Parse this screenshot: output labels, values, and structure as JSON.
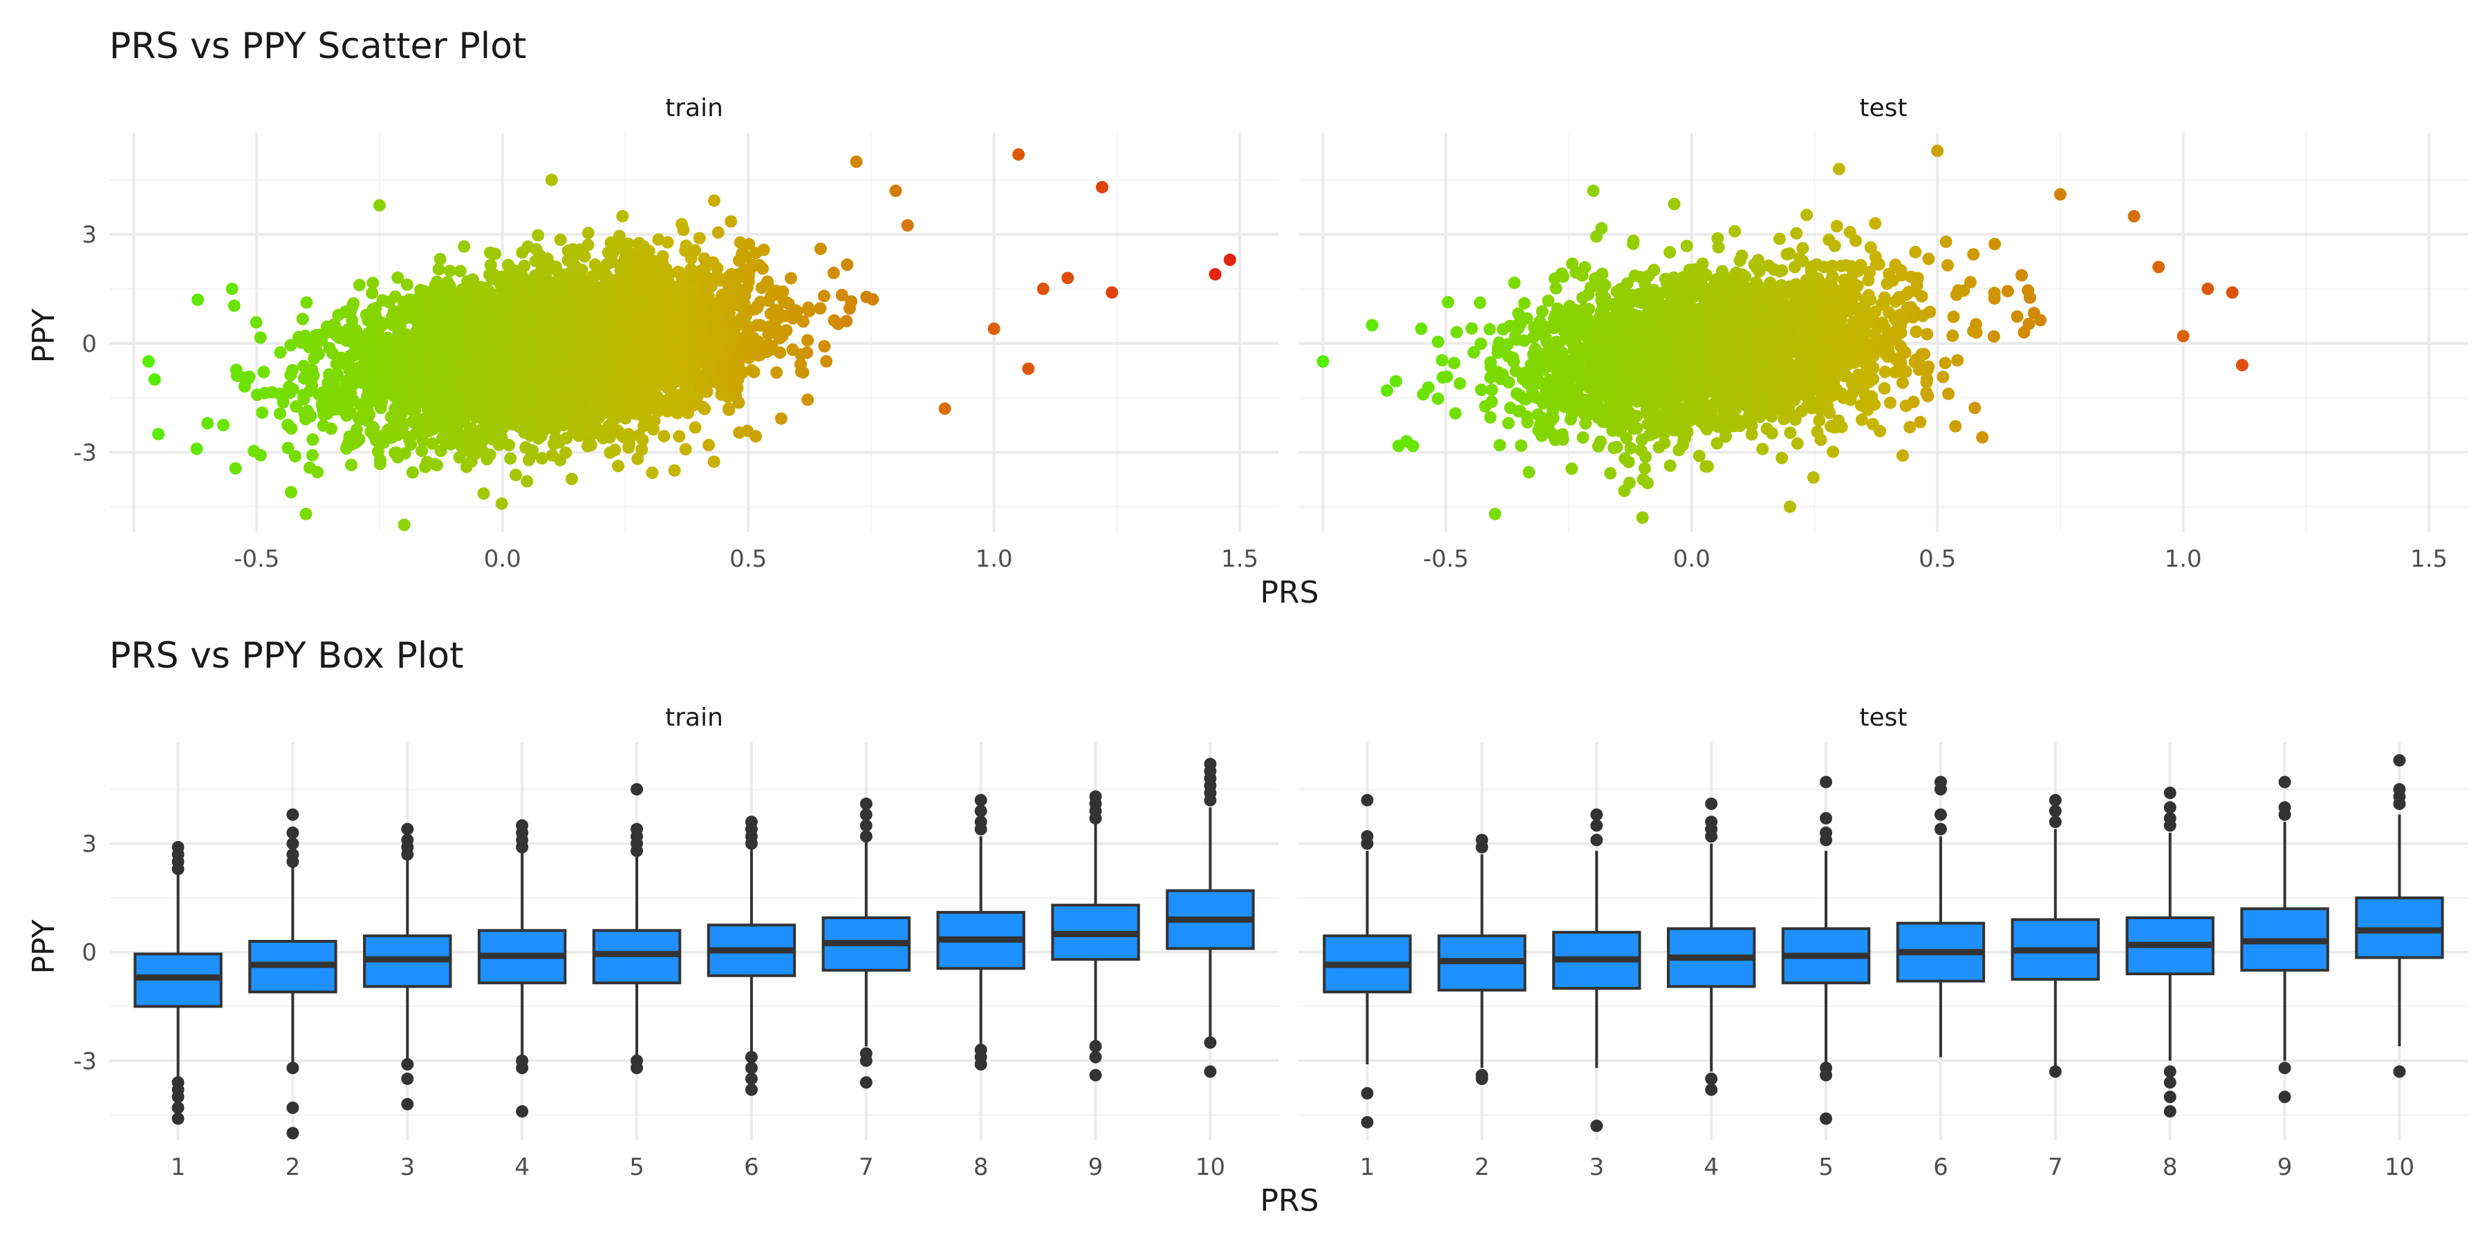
{
  "chart_data": [
    {
      "type": "scatter",
      "title": "PRS vs PPY Scatter Plot",
      "xlabel": "PRS",
      "ylabel": "PPY",
      "xlim": [
        -0.8,
        1.58
      ],
      "ylim": [
        -5.2,
        5.8
      ],
      "x_ticks": [
        "-0.5",
        "0.0",
        "0.5",
        "1.0",
        "1.5"
      ],
      "y_ticks": [
        "-3",
        "0",
        "3"
      ],
      "grid": true,
      "color_scale": {
        "low": "#55ee00",
        "mid": "#c8b400",
        "high": "#e81e10",
        "domain": [
          -0.75,
          1.5
        ]
      },
      "panels": [
        {
          "label": "train",
          "cloud": {
            "n": 5200,
            "x_mean": 0.1,
            "x_sd": 0.2,
            "y_intercept": -0.2,
            "y_slope": 1.6,
            "y_sd": 1.05
          },
          "outliers": [
            {
              "x": 1.05,
              "y": 5.2
            },
            {
              "x": 1.22,
              "y": 4.3
            },
            {
              "x": 1.48,
              "y": 2.3
            },
            {
              "x": 1.45,
              "y": 1.9
            },
            {
              "x": 1.24,
              "y": 1.4
            },
            {
              "x": 1.15,
              "y": 1.8
            },
            {
              "x": 1.07,
              "y": -0.7
            },
            {
              "x": 1.0,
              "y": 0.4
            },
            {
              "x": 1.1,
              "y": 1.5
            },
            {
              "x": -0.72,
              "y": -0.5
            },
            {
              "x": -0.7,
              "y": -2.5
            },
            {
              "x": -0.62,
              "y": 1.2
            },
            {
              "x": -0.6,
              "y": -2.2
            },
            {
              "x": -0.55,
              "y": 1.5
            },
            {
              "x": -0.2,
              "y": -5.0
            },
            {
              "x": -0.4,
              "y": -4.7
            },
            {
              "x": -0.43,
              "y": -4.1
            },
            {
              "x": 0.72,
              "y": 5.0
            },
            {
              "x": 0.1,
              "y": 4.5
            },
            {
              "x": 0.35,
              "y": -3.5
            },
            {
              "x": 0.05,
              "y": -3.8
            },
            {
              "x": -0.25,
              "y": 3.8
            },
            {
              "x": 0.8,
              "y": 4.2
            },
            {
              "x": 0.9,
              "y": -1.8
            }
          ]
        },
        {
          "label": "test",
          "cloud": {
            "n": 2600,
            "x_mean": 0.05,
            "x_sd": 0.2,
            "y_intercept": -0.2,
            "y_slope": 1.4,
            "y_sd": 1.1
          },
          "outliers": [
            {
              "x": -0.75,
              "y": -0.5
            },
            {
              "x": -0.65,
              "y": 0.5
            },
            {
              "x": -0.62,
              "y": -1.3
            },
            {
              "x": -0.58,
              "y": -2.7
            },
            {
              "x": -0.55,
              "y": 0.4
            },
            {
              "x": -0.4,
              "y": -4.7
            },
            {
              "x": 0.5,
              "y": 5.3
            },
            {
              "x": 0.3,
              "y": 4.8
            },
            {
              "x": 1.1,
              "y": 1.4
            },
            {
              "x": 1.12,
              "y": -0.6
            },
            {
              "x": 1.0,
              "y": 0.2
            },
            {
              "x": 1.05,
              "y": 1.5
            },
            {
              "x": 0.9,
              "y": 3.5
            },
            {
              "x": 0.75,
              "y": 4.1
            },
            {
              "x": 0.2,
              "y": -4.5
            },
            {
              "x": -0.1,
              "y": -4.8
            },
            {
              "x": -0.2,
              "y": 4.2
            },
            {
              "x": 0.95,
              "y": 2.1
            }
          ]
        }
      ]
    },
    {
      "type": "box",
      "title": "PRS vs PPY Box Plot",
      "xlabel": "PRS",
      "ylabel": "PPY",
      "categories": [
        "1",
        "2",
        "3",
        "4",
        "5",
        "6",
        "7",
        "8",
        "9",
        "10"
      ],
      "ylim": [
        -5.2,
        5.8
      ],
      "y_ticks": [
        "-3",
        "0",
        "3"
      ],
      "grid": true,
      "box_color": "#1e90ff",
      "panels": [
        {
          "label": "train",
          "boxes": [
            {
              "q1": -1.5,
              "median": -0.7,
              "q3": -0.05,
              "lo": -3.5,
              "hi": 2.2,
              "outliers": [
                2.3,
                2.5,
                2.7,
                2.9,
                -3.6,
                -3.8,
                -4.0,
                -4.3,
                -4.6
              ]
            },
            {
              "q1": -1.1,
              "median": -0.35,
              "q3": 0.3,
              "lo": -3.2,
              "hi": 2.4,
              "outliers": [
                2.5,
                2.7,
                3.0,
                3.3,
                3.8,
                -3.2,
                -4.3,
                -5.0
              ]
            },
            {
              "q1": -0.95,
              "median": -0.2,
              "q3": 0.45,
              "lo": -3.0,
              "hi": 2.6,
              "outliers": [
                2.7,
                2.9,
                3.1,
                3.4,
                -3.1,
                -3.5,
                -4.2
              ]
            },
            {
              "q1": -0.85,
              "median": -0.1,
              "q3": 0.6,
              "lo": -2.9,
              "hi": 2.8,
              "outliers": [
                2.9,
                3.1,
                3.3,
                3.5,
                -3.0,
                -3.2,
                -4.4
              ]
            },
            {
              "q1": -0.85,
              "median": -0.05,
              "q3": 0.6,
              "lo": -2.9,
              "hi": 2.7,
              "outliers": [
                2.8,
                3.0,
                3.2,
                3.4,
                4.5,
                -3.0,
                -3.2
              ]
            },
            {
              "q1": -0.65,
              "median": 0.05,
              "q3": 0.75,
              "lo": -2.8,
              "hi": 2.9,
              "outliers": [
                3.0,
                3.2,
                3.4,
                3.6,
                -2.9,
                -3.2,
                -3.5,
                -3.8
              ]
            },
            {
              "q1": -0.5,
              "median": 0.25,
              "q3": 0.95,
              "lo": -2.6,
              "hi": 3.1,
              "outliers": [
                3.2,
                3.5,
                3.8,
                4.1,
                -2.8,
                -3.0,
                -3.6
              ]
            },
            {
              "q1": -0.45,
              "median": 0.35,
              "q3": 1.1,
              "lo": -2.6,
              "hi": 3.2,
              "outliers": [
                3.4,
                3.6,
                3.9,
                4.2,
                -2.7,
                -2.9,
                -3.1
              ]
            },
            {
              "q1": -0.2,
              "median": 0.5,
              "q3": 1.3,
              "lo": -2.5,
              "hi": 3.6,
              "outliers": [
                3.7,
                3.9,
                4.1,
                4.3,
                -2.6,
                -2.9,
                -3.4
              ]
            },
            {
              "q1": 0.1,
              "median": 0.9,
              "q3": 1.7,
              "lo": -2.4,
              "hi": 4.0,
              "outliers": [
                4.2,
                4.4,
                4.6,
                4.8,
                5.0,
                5.2,
                -2.5,
                -3.3
              ]
            }
          ]
        },
        {
          "label": "test",
          "boxes": [
            {
              "q1": -1.1,
              "median": -0.35,
              "q3": 0.45,
              "lo": -3.1,
              "hi": 2.8,
              "outliers": [
                3.0,
                3.2,
                4.2,
                -3.9,
                -4.7
              ]
            },
            {
              "q1": -1.05,
              "median": -0.25,
              "q3": 0.45,
              "lo": -3.2,
              "hi": 2.7,
              "outliers": [
                2.9,
                3.1,
                -3.4,
                -3.5
              ]
            },
            {
              "q1": -1.0,
              "median": -0.2,
              "q3": 0.55,
              "lo": -3.2,
              "hi": 2.8,
              "outliers": [
                3.1,
                3.5,
                3.8,
                -4.8
              ]
            },
            {
              "q1": -0.95,
              "median": -0.15,
              "q3": 0.65,
              "lo": -3.3,
              "hi": 3.0,
              "outliers": [
                3.2,
                3.4,
                3.6,
                4.1,
                -3.5,
                -3.8
              ]
            },
            {
              "q1": -0.85,
              "median": -0.1,
              "q3": 0.65,
              "lo": -3.1,
              "hi": 2.8,
              "outliers": [
                3.1,
                3.3,
                3.7,
                4.7,
                -3.2,
                -3.4,
                -4.6
              ]
            },
            {
              "q1": -0.8,
              "median": 0.0,
              "q3": 0.8,
              "lo": -2.9,
              "hi": 3.2,
              "outliers": [
                3.4,
                3.8,
                4.5,
                4.7
              ]
            },
            {
              "q1": -0.75,
              "median": 0.05,
              "q3": 0.9,
              "lo": -3.2,
              "hi": 3.4,
              "outliers": [
                3.6,
                3.9,
                4.2,
                -3.3
              ]
            },
            {
              "q1": -0.6,
              "median": 0.2,
              "q3": 0.95,
              "lo": -3.0,
              "hi": 3.3,
              "outliers": [
                3.5,
                3.7,
                4.0,
                4.4,
                -3.3,
                -3.6,
                -4.0,
                -4.4
              ]
            },
            {
              "q1": -0.5,
              "median": 0.3,
              "q3": 1.2,
              "lo": -3.0,
              "hi": 3.6,
              "outliers": [
                3.8,
                4.0,
                4.7,
                -3.2,
                -4.0
              ]
            },
            {
              "q1": -0.15,
              "median": 0.6,
              "q3": 1.5,
              "lo": -2.6,
              "hi": 3.8,
              "outliers": [
                4.1,
                4.3,
                4.5,
                5.3,
                -3.3
              ]
            }
          ]
        }
      ]
    }
  ]
}
